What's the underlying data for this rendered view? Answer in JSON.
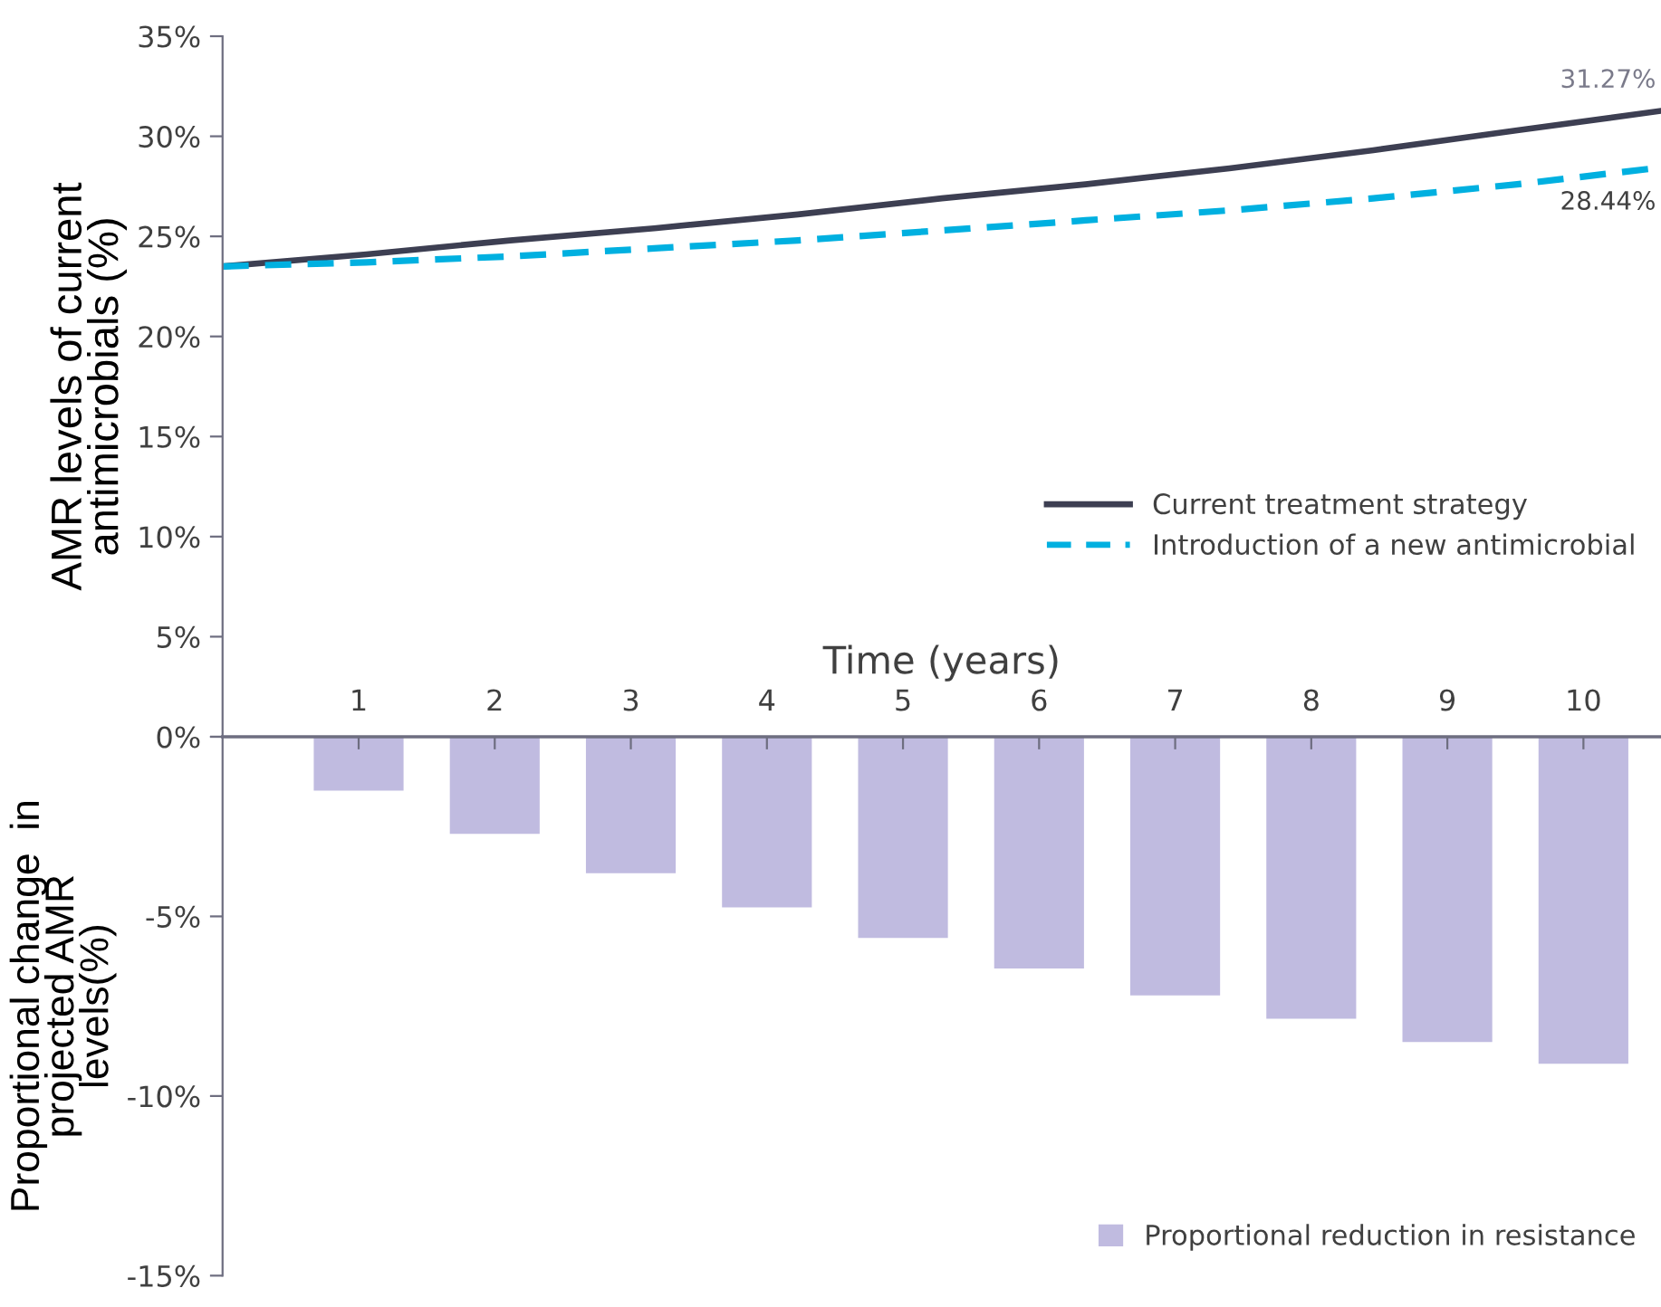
{
  "chart_data": [
    {
      "type": "line",
      "ylabel": "AMR levels of current\nantimicrobials (%)",
      "categories": [
        null,
        null,
        null,
        null,
        null,
        null,
        null,
        null,
        null,
        null,
        null
      ],
      "series": [
        {
          "name": "Current treatment strategy",
          "color": "#3d3f52",
          "line_style": "solid",
          "values": [
            23.5,
            24.1,
            24.8,
            25.4,
            26.1,
            26.9,
            27.6,
            28.4,
            29.3,
            30.3,
            31.27
          ]
        },
        {
          "name": "Introduction of a new antimicrobial",
          "color": "#00b0e0",
          "line_style": "dashed",
          "values": [
            23.5,
            23.7,
            24.0,
            24.4,
            24.8,
            25.3,
            25.8,
            26.3,
            26.9,
            27.6,
            28.44
          ]
        }
      ],
      "ylim": [
        0,
        35
      ],
      "yticks": [
        {
          "value": 0,
          "label": "0%"
        },
        {
          "value": 5,
          "label": "5%"
        },
        {
          "value": 10,
          "label": "10%"
        },
        {
          "value": 15,
          "label": "15%"
        },
        {
          "value": 20,
          "label": "20%"
        },
        {
          "value": 25,
          "label": "25%"
        },
        {
          "value": 30,
          "label": "30%"
        },
        {
          "value": 35,
          "label": "35%"
        }
      ],
      "annotations": [
        {
          "text": "31.27%",
          "y": 31.27
        },
        {
          "text": "28.44%",
          "y": 28.44
        }
      ],
      "tick_labels": "y",
      "legend": "right",
      "grid": false,
      "marker": "none"
    },
    {
      "type": "bar",
      "xlabel": "Time (years)",
      "ylabel": "Proportional change  in\nprojected AMR\nlevels(%)",
      "categories": [
        "1",
        "2",
        "3",
        "4",
        "5",
        "6",
        "7",
        "8",
        "9",
        "10"
      ],
      "series": [
        {
          "name": "Proportional reduction in resistance",
          "color": "#c0bbe0",
          "values": [
            -1.5,
            -2.7,
            -3.8,
            -4.75,
            -5.6,
            -6.45,
            -7.2,
            -7.85,
            -8.5,
            -9.1
          ]
        }
      ],
      "ylim": [
        -15,
        0
      ],
      "yticks": [
        {
          "value": -15,
          "label": "-15%"
        },
        {
          "value": -10,
          "label": "-10%"
        },
        {
          "value": -5,
          "label": "-5%"
        },
        {
          "value": 0,
          "label": null
        }
      ],
      "legend": "bottom right",
      "grid": false
    }
  ]
}
